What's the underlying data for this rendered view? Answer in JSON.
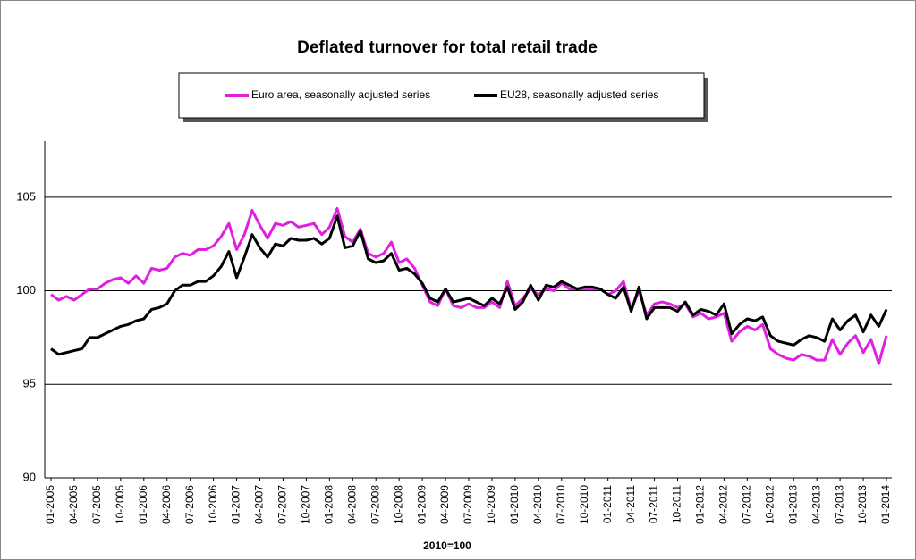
{
  "chart_data": {
    "type": "line",
    "title": "Deflated turnover for total retail trade",
    "x_label": "2010=100",
    "categories": [
      "01-2005",
      null,
      null,
      "04-2005",
      null,
      null,
      "07-2005",
      null,
      null,
      "10-2005",
      null,
      null,
      "01-2006",
      null,
      null,
      "04-2006",
      null,
      null,
      "07-2006",
      null,
      null,
      "10-2006",
      null,
      null,
      "01-2007",
      null,
      null,
      "04-2007",
      null,
      null,
      "07-2007",
      null,
      null,
      "10-2007",
      null,
      null,
      "01-2008",
      null,
      null,
      "04-2008",
      null,
      null,
      "07-2008",
      null,
      null,
      "10-2008",
      null,
      null,
      "01-2009",
      null,
      null,
      "04-2009",
      null,
      null,
      "07-2009",
      null,
      null,
      "10-2009",
      null,
      null,
      "01-2010",
      null,
      null,
      "04-2010",
      null,
      null,
      "07-2010",
      null,
      null,
      "10-2010",
      null,
      null,
      "01-2011",
      null,
      null,
      "04-2011",
      null,
      null,
      "07-2011",
      null,
      null,
      "10-2011",
      null,
      null,
      "01-2012",
      null,
      null,
      "04-2012",
      null,
      null,
      "07-2012",
      null,
      null,
      "10-2012",
      null,
      null,
      "01-2013",
      null,
      null,
      "04-2013",
      null,
      null,
      "07-2013",
      null,
      null,
      "10-2013",
      null,
      null,
      "01-2014"
    ],
    "series": [
      {
        "name": "Euro area, seasonally adjusted series",
        "color": "#e020e0",
        "values": [
          99.8,
          99.5,
          99.7,
          99.5,
          99.8,
          100.1,
          100.1,
          100.4,
          100.6,
          100.7,
          100.4,
          100.8,
          100.4,
          101.2,
          101.1,
          101.2,
          101.8,
          102.0,
          101.9,
          102.2,
          102.2,
          102.4,
          102.9,
          103.6,
          102.2,
          103.0,
          104.3,
          103.5,
          102.8,
          103.6,
          103.5,
          103.7,
          103.4,
          103.5,
          103.6,
          103.0,
          103.4,
          104.4,
          102.9,
          102.6,
          103.3,
          102.0,
          101.8,
          102.0,
          102.6,
          101.5,
          101.7,
          101.2,
          100.3,
          99.4,
          99.2,
          100.1,
          99.2,
          99.1,
          99.3,
          99.1,
          99.1,
          99.4,
          99.1,
          100.5,
          99.2,
          99.6,
          100.1,
          99.8,
          100.1,
          100.0,
          100.4,
          100.1,
          100.1,
          100.1,
          100.1,
          100.1,
          99.8,
          100.0,
          100.5,
          99.0,
          100.0,
          98.7,
          99.3,
          99.4,
          99.3,
          99.1,
          99.3,
          98.6,
          98.8,
          98.5,
          98.6,
          98.8,
          97.3,
          97.8,
          98.1,
          97.9,
          98.2,
          96.9,
          96.6,
          96.4,
          96.3,
          96.6,
          96.5,
          96.3,
          96.3,
          97.4,
          96.6,
          97.2,
          97.6,
          96.7,
          97.4,
          96.1,
          97.6
        ]
      },
      {
        "name": "EU28, seasonally adjusted series",
        "color": "#000000",
        "values": [
          96.9,
          96.6,
          96.7,
          96.8,
          96.9,
          97.5,
          97.5,
          97.7,
          97.9,
          98.1,
          98.2,
          98.4,
          98.5,
          99.0,
          99.1,
          99.3,
          100.0,
          100.3,
          100.3,
          100.5,
          100.5,
          100.8,
          101.3,
          102.1,
          100.7,
          101.8,
          103.0,
          102.3,
          101.8,
          102.5,
          102.4,
          102.8,
          102.7,
          102.7,
          102.8,
          102.5,
          102.8,
          104.0,
          102.3,
          102.4,
          103.2,
          101.7,
          101.5,
          101.6,
          102.0,
          101.1,
          101.2,
          100.9,
          100.4,
          99.6,
          99.4,
          100.1,
          99.4,
          99.5,
          99.6,
          99.4,
          99.2,
          99.6,
          99.3,
          100.2,
          99.0,
          99.4,
          100.3,
          99.5,
          100.3,
          100.2,
          100.5,
          100.3,
          100.1,
          100.2,
          100.2,
          100.1,
          99.8,
          99.6,
          100.2,
          98.9,
          100.2,
          98.5,
          99.1,
          99.1,
          99.1,
          98.9,
          99.4,
          98.7,
          99.0,
          98.9,
          98.7,
          99.3,
          97.7,
          98.2,
          98.5,
          98.4,
          98.6,
          97.6,
          97.3,
          97.2,
          97.1,
          97.4,
          97.6,
          97.5,
          97.3,
          98.5,
          97.9,
          98.4,
          98.7,
          97.8,
          98.7,
          98.1,
          99.0
        ]
      }
    ],
    "ylim": [
      90,
      108
    ],
    "yticks": [
      90,
      95,
      100,
      105
    ],
    "grid": true
  }
}
